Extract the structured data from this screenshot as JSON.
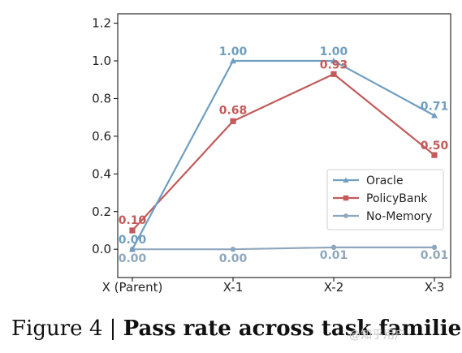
{
  "chart_data": {
    "type": "line",
    "categories": [
      "X (Parent)",
      "X-1",
      "X-2",
      "X-3"
    ],
    "ylim": [
      -0.15,
      1.25
    ],
    "yticks": [
      0.0,
      0.2,
      0.4,
      0.6,
      0.8,
      1.0,
      1.2
    ],
    "ytick_labels": [
      "0.0",
      "0.2",
      "0.4",
      "0.6",
      "0.8",
      "1.0",
      "1.2"
    ],
    "grid": false,
    "legend_position": "center-right",
    "series": [
      {
        "name": "Oracle",
        "marker": "triangle",
        "color": "#6f9ec0",
        "values": [
          0.0,
          1.0,
          1.0,
          0.71
        ],
        "labels": [
          "0.00",
          "1.00",
          "1.00",
          "0.71"
        ]
      },
      {
        "name": "PolicyBank",
        "marker": "square",
        "color": "#c25b59",
        "values": [
          0.1,
          0.68,
          0.93,
          0.5
        ],
        "labels": [
          "0.10",
          "0.68",
          "0.93",
          "0.50"
        ]
      },
      {
        "name": "No-Memory",
        "marker": "circle",
        "color": "#8fa7bd",
        "values": [
          0.0,
          0.0,
          0.01,
          0.01
        ],
        "labels": [
          "0.00",
          "0.00",
          "0.01",
          "0.01"
        ]
      }
    ]
  },
  "caption": {
    "prefix": "Figure 4 | ",
    "title": "Pass rate across task families"
  },
  "watermark": "@知乎用户"
}
